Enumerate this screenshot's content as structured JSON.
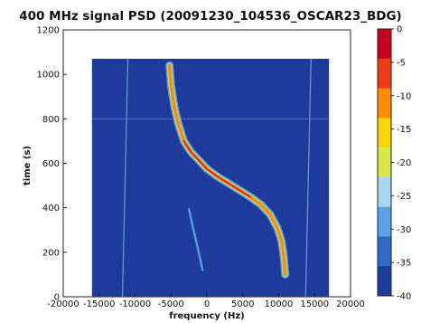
{
  "chart_data": {
    "type": "heatmap",
    "title": "400 MHz signal PSD (20091230_104536_OSCAR23_BDG)",
    "xlabel": "frequency (Hz)",
    "ylabel": "time (s)",
    "xlim": [
      -20000,
      20000
    ],
    "ylim": [
      0,
      1200
    ],
    "x_ticks": [
      "-20000",
      "-15000",
      "-10000",
      "-5000",
      "0",
      "5000",
      "10000",
      "15000",
      "20000"
    ],
    "y_ticks": [
      "0",
      "200",
      "400",
      "600",
      "800",
      "1000",
      "1200"
    ],
    "data_extent": {
      "x": [
        -16000,
        17000
      ],
      "y": [
        0,
        1070
      ]
    },
    "colorbar": {
      "range": [
        -40,
        0
      ],
      "ticks": [
        "0",
        "-5",
        "-10",
        "-15",
        "-20",
        "-25",
        "-30",
        "-35",
        "-40"
      ],
      "colors": [
        "#c8001e",
        "#f03c14",
        "#ff8c00",
        "#ffd400",
        "#d8e84a",
        "#a8d6f0",
        "#5aa3e8",
        "#2f6bc6",
        "#1e3a9a"
      ]
    },
    "background_level": -38,
    "series": [
      {
        "label": "doppler_curve",
        "level": -12,
        "points": [
          [
            -5200,
            1040
          ],
          [
            -5000,
            950
          ],
          [
            -4500,
            850
          ],
          [
            -4000,
            780
          ],
          [
            -3200,
            700
          ],
          [
            -2200,
            650
          ],
          [
            -1000,
            610
          ],
          [
            0,
            575
          ],
          [
            1500,
            540
          ],
          [
            3000,
            510
          ],
          [
            4500,
            480
          ],
          [
            6000,
            450
          ],
          [
            7500,
            415
          ],
          [
            8800,
            370
          ],
          [
            9800,
            310
          ],
          [
            10400,
            250
          ],
          [
            10700,
            180
          ],
          [
            10900,
            100
          ]
        ]
      },
      {
        "label": "weak_trace",
        "level": -30,
        "points": [
          [
            -2500,
            395
          ],
          [
            -2000,
            320
          ],
          [
            -1500,
            250
          ],
          [
            -1000,
            180
          ],
          [
            -600,
            120
          ]
        ]
      }
    ],
    "vertical_lines": [
      -11000,
      14500
    ],
    "horizontal_line_y": 800
  }
}
